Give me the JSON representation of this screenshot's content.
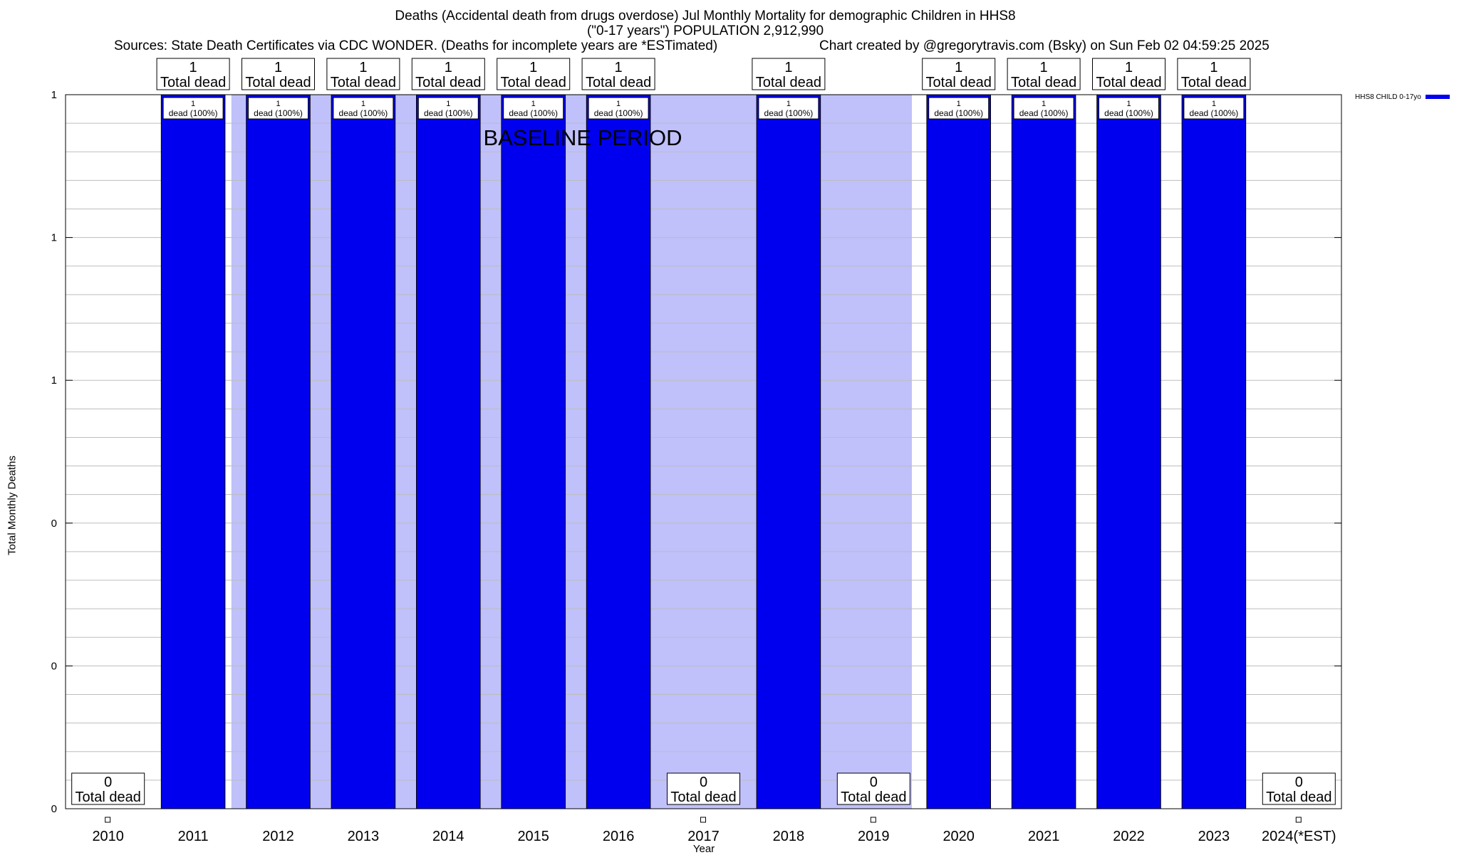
{
  "title": {
    "line1": "Deaths (Accidental death from drugs overdose) Jul Monthly Mortality for demographic Children in HHS8",
    "line2": "(\"0-17 years\") POPULATION 2,912,990",
    "sources": "Sources: State Death Certificates via CDC WONDER. (Deaths for incomplete years are *ESTimated)",
    "credit": "Chart created by @gregorytravis.com (Bsky) on Sun Feb 02 04:59:25 2025"
  },
  "colors": {
    "bar": "#0000ee",
    "baseline": "#c0c0fa",
    "grid": "#bdbdbd"
  },
  "chart_data": {
    "type": "bar",
    "title": "Deaths (Accidental death from drugs overdose) Jul Monthly Mortality for demographic Children in HHS8",
    "xlabel": "Year",
    "ylabel": "Total Monthly Deaths",
    "ylim": [
      0,
      1
    ],
    "y_tick_labels": [
      "0",
      "0",
      "0",
      "1",
      "1",
      "1"
    ],
    "categories": [
      "2010",
      "2011",
      "2012",
      "2013",
      "2014",
      "2015",
      "2016",
      "2017",
      "2018",
      "2019",
      "2020",
      "2021",
      "2022",
      "2023",
      "2024(*EST)"
    ],
    "series": [
      {
        "name": "HHS8 CHILD 0-17yo",
        "values": [
          0,
          1,
          1,
          1,
          1,
          1,
          1,
          0,
          1,
          0,
          1,
          1,
          1,
          1,
          0
        ]
      }
    ],
    "total_labels": [
      "0",
      "1",
      "1",
      "1",
      "1",
      "1",
      "1",
      "0",
      "1",
      "0",
      "1",
      "1",
      "1",
      "1",
      "0"
    ],
    "total_suffix": "Total dead",
    "bar_labels": [
      "",
      "1",
      "1",
      "1",
      "1",
      "1",
      "1",
      "",
      "1",
      "",
      "1",
      "1",
      "1",
      "1",
      ""
    ],
    "bar_label_suffix": "dead (100%)",
    "baseline": {
      "label": "BASELINE PERIOD",
      "from": "2012",
      "to": "2019"
    },
    "legend": {
      "label": "HHS8 CHILD 0-17yo",
      "position": "top-right"
    },
    "grid": true
  }
}
